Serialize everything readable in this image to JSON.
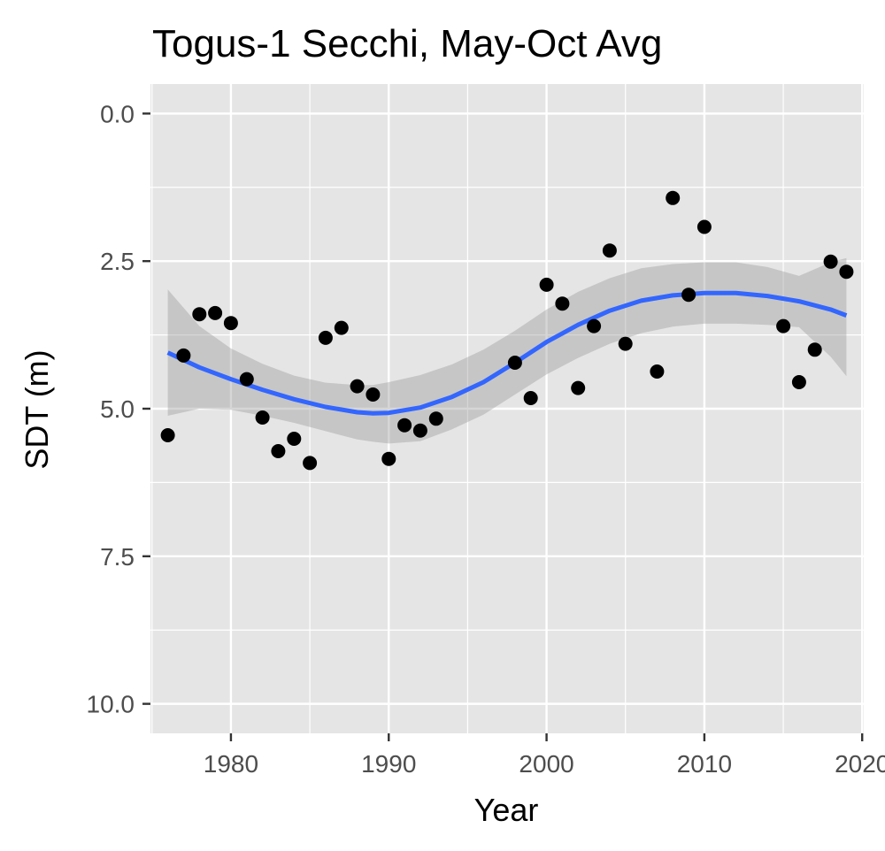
{
  "chart_data": {
    "type": "scatter",
    "title": "Togus-1 Secchi, May-Oct Avg",
    "xlabel": "Year",
    "ylabel": "SDT (m)",
    "xlim": [
      1974.9,
      2020.1
    ],
    "ylim": [
      10.5,
      -0.5
    ],
    "y_reversed": true,
    "x_ticks": [
      1980,
      1990,
      2000,
      2010,
      2020
    ],
    "x_tick_labels": [
      "1980",
      "1990",
      "2000",
      "2010",
      "2020"
    ],
    "y_ticks": [
      0,
      2.5,
      5,
      7.5,
      10
    ],
    "y_tick_labels": [
      "0.0",
      "2.5",
      "5.0",
      "7.5",
      "10.0"
    ],
    "grid": true,
    "series": [
      {
        "type": "scatter",
        "x": [
          1976,
          1977,
          1978,
          1979,
          1980,
          1981,
          1982,
          1983,
          1984,
          1985,
          1986,
          1987,
          1988,
          1989,
          1990,
          1991,
          1992,
          1993,
          1998,
          1999,
          2000,
          2001,
          2002,
          2003,
          2004,
          2005,
          2007,
          2008,
          2009,
          2010,
          2015,
          2016,
          2017,
          2018,
          2019
        ],
        "y": [
          5.45,
          4.1,
          3.4,
          3.38,
          3.55,
          4.5,
          5.15,
          5.72,
          5.51,
          5.92,
          3.8,
          3.63,
          4.62,
          4.76,
          5.85,
          5.28,
          5.37,
          5.17,
          4.22,
          4.82,
          2.9,
          3.22,
          4.65,
          3.6,
          2.32,
          3.9,
          4.37,
          1.43,
          3.07,
          1.92,
          3.6,
          4.55,
          4.0,
          2.51,
          2.68
        ],
        "color": "#000000"
      },
      {
        "type": "line",
        "name": "",
        "x": [
          1976,
          1978,
          1980,
          1982,
          1984,
          1986,
          1988,
          1989,
          1990,
          1992,
          1994,
          1996,
          1998,
          2000,
          2002,
          2004,
          2006,
          2008,
          2010,
          2012,
          2014,
          2016,
          2018,
          2019
        ],
        "y": [
          4.05,
          4.3,
          4.5,
          4.68,
          4.84,
          4.97,
          5.06,
          5.08,
          5.07,
          4.98,
          4.8,
          4.55,
          4.22,
          3.87,
          3.58,
          3.34,
          3.17,
          3.08,
          3.04,
          3.04,
          3.09,
          3.18,
          3.32,
          3.42
        ],
        "color": "#3366FF"
      },
      {
        "type": "band",
        "x": [
          1976,
          1978,
          1980,
          1982,
          1984,
          1986,
          1988,
          1989,
          1990,
          1992,
          1994,
          1996,
          1998,
          2000,
          2002,
          2004,
          2006,
          2008,
          2010,
          2012,
          2014,
          2016,
          2018,
          2019
        ],
        "lower": [
          2.98,
          3.6,
          3.98,
          4.24,
          4.44,
          4.56,
          4.6,
          4.6,
          4.55,
          4.43,
          4.25,
          4.0,
          3.68,
          3.32,
          3.02,
          2.79,
          2.62,
          2.55,
          2.52,
          2.52,
          2.6,
          2.75,
          2.52,
          2.45
        ],
        "upper": [
          5.12,
          5.0,
          5.02,
          5.12,
          5.24,
          5.38,
          5.52,
          5.56,
          5.59,
          5.55,
          5.35,
          5.1,
          4.76,
          4.42,
          4.14,
          3.9,
          3.72,
          3.61,
          3.56,
          3.56,
          3.58,
          3.62,
          4.12,
          4.45
        ],
        "color": "#999999"
      }
    ],
    "colors": {
      "panel_bg": "#E5E5E5",
      "grid": "#FFFFFF",
      "line": "#3366FF",
      "band": "#999999",
      "points": "#000000",
      "tick_text": "#4D4D4D",
      "tick_mark": "#333333"
    }
  }
}
